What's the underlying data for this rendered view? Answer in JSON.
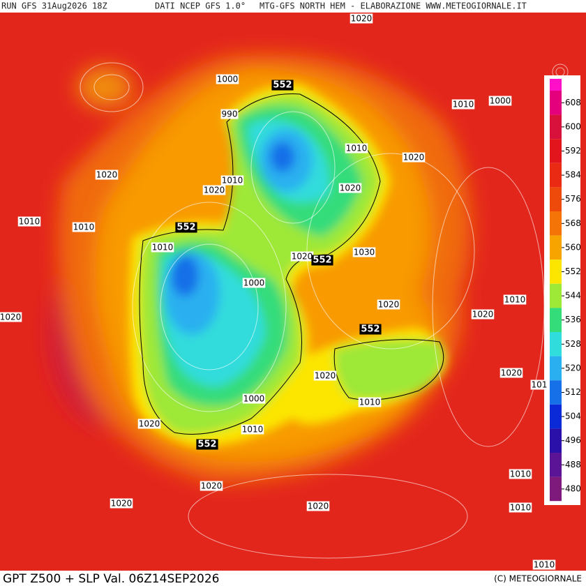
{
  "header": {
    "run": "RUN GFS 31Aug2026 18Z",
    "source": "DATI NCEP GFS 1.0°",
    "product": "MTG-GFS NORTH HEM - ELABORAZIONE WWW.METEOGIORNALE.IT"
  },
  "footer": {
    "title": "GPT Z500 + SLP Val. 06Z14SEP2026",
    "credit": "(C) METEOGIORNALE"
  },
  "colorbar": {
    "labels": [
      608,
      600,
      592,
      584,
      576,
      568,
      560,
      552,
      544,
      536,
      528,
      520,
      512,
      504,
      496,
      488,
      480
    ],
    "colors": [
      "#e4007c",
      "#d8103c",
      "#e2141c",
      "#ea2a12",
      "#ee4a0c",
      "#f47408",
      "#f8a400",
      "#fce600",
      "#9ee838",
      "#34dc7a",
      "#30dcdc",
      "#2ab0f0",
      "#1670e8",
      "#0a2ad8",
      "#2a10a8",
      "#5c1496",
      "#7e1a7c"
    ]
  },
  "slp_labels": [
    "1020",
    "1000",
    "1010",
    "1000",
    "990",
    "1010",
    "1020",
    "1020",
    "1010",
    "1020",
    "1020",
    "1010",
    "1010",
    "1010",
    "1030",
    "1020",
    "1000",
    "1010",
    "1020",
    "1020",
    "1020",
    "1020",
    "101",
    "1020",
    "1000",
    "1010",
    "1020",
    "1010",
    "1020",
    "1010",
    "1020",
    "1020",
    "1010",
    "1010"
  ],
  "z500_labels": [
    "552",
    "552",
    "552",
    "552",
    "552"
  ]
}
